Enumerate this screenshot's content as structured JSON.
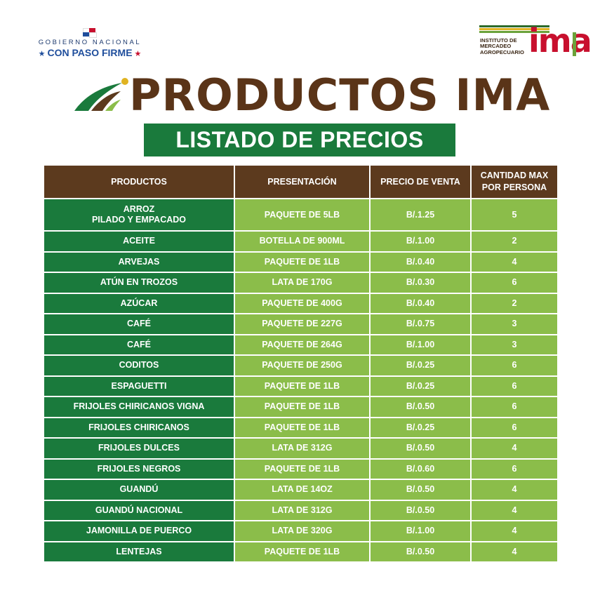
{
  "header": {
    "gobierno_line1": "GOBIERNO NACIONAL",
    "gobierno_line2": "CON PASO FIRME",
    "ima_logo_text": [
      "INSTITUTO DE",
      "MERCADEO",
      "AGROPECUARIO"
    ],
    "ima_logo_mark": "ima"
  },
  "title": "PRODUCTOS IMA",
  "subtitle": "LISTADO DE PRECIOS",
  "colors": {
    "brown": "#5c3a1e",
    "dark_green": "#1a7a3c",
    "light_green": "#8bbd4a",
    "ima_red": "#c8102e"
  },
  "table": {
    "headers": [
      "PRODUCTOS",
      "PRESENTACIÓN",
      "PRECIO DE VENTA",
      "CANTIDAD MAX POR PERSONA"
    ],
    "rows": [
      [
        "ARROZ PILADO Y EMPACADO",
        "PAQUETE DE 5LB",
        "B/.1.25",
        "5"
      ],
      [
        "ACEITE",
        "BOTELLA DE 900ML",
        "B/.1.00",
        "2"
      ],
      [
        "ARVEJAS",
        "PAQUETE DE 1LB",
        "B/.0.40",
        "4"
      ],
      [
        "ATÚN EN TROZOS",
        "LATA DE 170G",
        "B/.0.30",
        "6"
      ],
      [
        "AZÚCAR",
        "PAQUETE DE 400G",
        "B/.0.40",
        "2"
      ],
      [
        "CAFÉ",
        "PAQUETE DE 227G",
        "B/.0.75",
        "3"
      ],
      [
        "CAFÉ",
        "PAQUETE DE 264G",
        "B/.1.00",
        "3"
      ],
      [
        "CODITOS",
        "PAQUETE DE 250G",
        "B/.0.25",
        "6"
      ],
      [
        "ESPAGUETTI",
        "PAQUETE DE 1LB",
        "B/.0.25",
        "6"
      ],
      [
        "FRIJOLES CHIRICANOS VIGNA",
        "PAQUETE DE 1LB",
        "B/.0.50",
        "6"
      ],
      [
        "FRIJOLES CHIRICANOS",
        "PAQUETE DE 1LB",
        "B/.0.25",
        "6"
      ],
      [
        "FRIJOLES DULCES",
        "LATA DE 312G",
        "B/.0.50",
        "4"
      ],
      [
        "FRIJOLES NEGROS",
        "PAQUETE DE 1LB",
        "B/.0.60",
        "6"
      ],
      [
        "GUANDÚ",
        "LATA DE 14OZ",
        "B/.0.50",
        "4"
      ],
      [
        "GUANDÚ NACIONAL",
        "LATA DE 312G",
        "B/.0.50",
        "4"
      ],
      [
        "JAMONILLA DE PUERCO",
        "LATA DE 320G",
        "B/.1.00",
        "4"
      ],
      [
        "LENTEJAS",
        "PAQUETE DE 1LB",
        "B/.0.50",
        "4"
      ]
    ]
  }
}
